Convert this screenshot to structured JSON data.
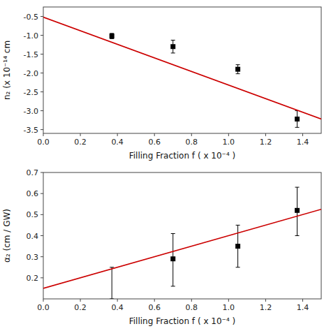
{
  "chart_data": [
    {
      "type": "scatter",
      "x_label": "Filling Fraction f ( x 10⁻⁴ )",
      "y_label": "n₂ (x 10⁻¹⁴ cm",
      "series": [
        {
          "type": "scatter",
          "marker": "square",
          "color": "black",
          "x": [
            0.37,
            0.7,
            1.05,
            1.37
          ],
          "values": [
            -1.02,
            -1.3,
            -1.9,
            -3.22
          ],
          "yerr": [
            0.07,
            0.17,
            0.12,
            0.22
          ]
        },
        {
          "type": "line",
          "color": "#cc0000",
          "x": [
            0.0,
            1.5
          ],
          "values": [
            -0.52,
            -3.22
          ]
        }
      ],
      "xlim": [
        0.0,
        1.5
      ],
      "ylim": [
        -3.6,
        -0.25
      ],
      "xticks": [
        {
          "value": 0.0,
          "label": "0.0"
        },
        0.2,
        0.4,
        0.6,
        0.8,
        {
          "value": 1.0,
          "label": "1.0"
        },
        1.2,
        1.4
      ],
      "yticks": [
        -3.5,
        {
          "value": -3.0,
          "label": "-3.0"
        },
        -2.5,
        {
          "value": -2.0,
          "label": "-2.0"
        },
        -1.5,
        {
          "value": -1.0,
          "label": "-1.0"
        },
        -0.5
      ],
      "grid": false
    },
    {
      "type": "scatter",
      "x_label": "Filling Fraction f ( x 10⁻⁴ )",
      "y_label": "α₂ (cm / GW)",
      "series": [
        {
          "type": "scatter",
          "marker": "none",
          "color": "black",
          "x": [
            0.37
          ],
          "values": [
            0.175
          ],
          "yerr_lower": [
            0.075
          ],
          "yerr_upper": [
            0.075
          ]
        },
        {
          "type": "scatter",
          "marker": "square",
          "color": "black",
          "x": [
            0.7,
            1.05,
            1.37
          ],
          "values": [
            0.29,
            0.35,
            0.52
          ],
          "yerr_lower": [
            0.13,
            0.1,
            0.12
          ],
          "yerr_upper": [
            0.12,
            0.1,
            0.11
          ]
        },
        {
          "type": "line",
          "color": "#cc0000",
          "x": [
            0.0,
            1.5
          ],
          "values": [
            0.15,
            0.525
          ]
        }
      ],
      "xlim": [
        0.0,
        1.5
      ],
      "ylim": [
        0.1,
        0.7
      ],
      "xticks": [
        {
          "value": 0.0,
          "label": "0.0"
        },
        0.2,
        0.4,
        0.6,
        0.8,
        {
          "value": 1.0,
          "label": "1.0"
        },
        1.2,
        1.4
      ],
      "yticks": [
        0.2,
        0.3,
        0.4,
        0.5,
        0.6,
        0.7
      ],
      "grid": false
    }
  ]
}
